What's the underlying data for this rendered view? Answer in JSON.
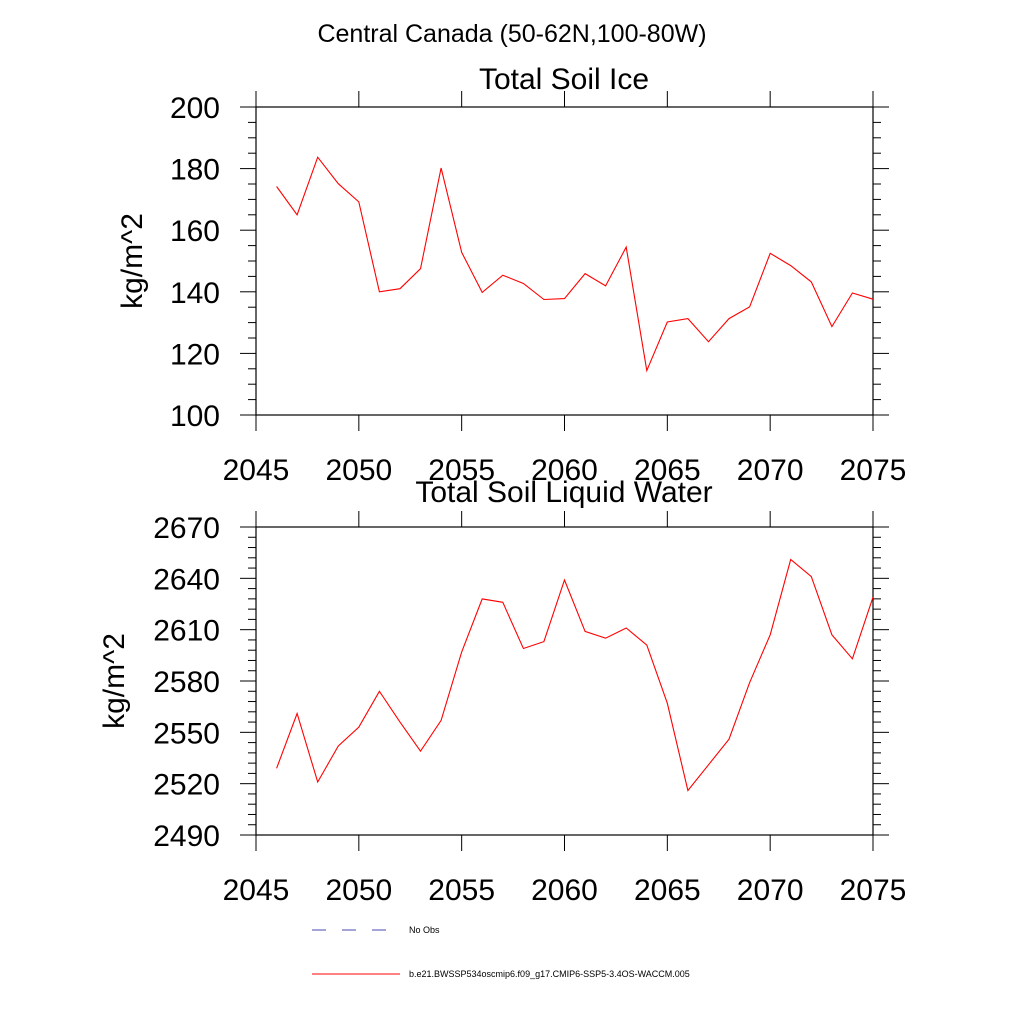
{
  "figure": {
    "suptitle": "Central Canada (50-62N,100-80W)"
  },
  "chart_data": [
    {
      "type": "line",
      "title": "Total Soil Ice",
      "xlabel": "",
      "ylabel": "kg/m^2",
      "xlim": [
        2045,
        2075
      ],
      "ylim": [
        100,
        200
      ],
      "x_ticks": [
        "2045",
        "2050",
        "2055",
        "2060",
        "2065",
        "2070",
        "2075"
      ],
      "y_ticks": [
        "100",
        "120",
        "140",
        "160",
        "180",
        "200"
      ],
      "x": [
        2046,
        2047,
        2048,
        2049,
        2050,
        2051,
        2052,
        2053,
        2054,
        2055,
        2056,
        2057,
        2058,
        2059,
        2060,
        2061,
        2062,
        2063,
        2064,
        2065,
        2066,
        2067,
        2068,
        2069,
        2070,
        2071,
        2072,
        2073,
        2074,
        2075
      ],
      "series": [
        {
          "name": "b.e21.BWSSP534oscmip6.f09_g17.CMIP6-SSP5-3.4OS-WACCM.005",
          "color": "#ff0000",
          "values": [
            174.2,
            165.0,
            183.7,
            175.1,
            169.2,
            140.0,
            141.0,
            147.5,
            180.2,
            152.8,
            139.8,
            145.4,
            142.7,
            137.5,
            137.8,
            145.9,
            141.9,
            154.5,
            114.4,
            130.2,
            131.3,
            123.8,
            131.3,
            135.1,
            152.5,
            148.5,
            143.2,
            128.7,
            139.6,
            137.6
          ]
        }
      ]
    },
    {
      "type": "line",
      "title": "Total Soil Liquid Water",
      "xlabel": "",
      "ylabel": "kg/m^2",
      "xlim": [
        2045,
        2075
      ],
      "ylim": [
        2490,
        2670
      ],
      "x_ticks": [
        "2045",
        "2050",
        "2055",
        "2060",
        "2065",
        "2070",
        "2075"
      ],
      "y_ticks": [
        "2490",
        "2520",
        "2550",
        "2580",
        "2610",
        "2640",
        "2670"
      ],
      "x": [
        2046,
        2047,
        2048,
        2049,
        2050,
        2051,
        2052,
        2053,
        2054,
        2055,
        2056,
        2057,
        2058,
        2059,
        2060,
        2061,
        2062,
        2063,
        2064,
        2065,
        2066,
        2067,
        2068,
        2069,
        2070,
        2071,
        2072,
        2073,
        2074,
        2075
      ],
      "series": [
        {
          "name": "b.e21.BWSSP534oscmip6.f09_g17.CMIP6-SSP5-3.4OS-WACCM.005",
          "color": "#ff0000",
          "values": [
            2529,
            2561,
            2521,
            2542,
            2553,
            2574,
            2556,
            2539,
            2557,
            2597,
            2628,
            2626,
            2599,
            2603,
            2639,
            2609,
            2605,
            2611,
            2601,
            2567,
            2516,
            2531,
            2546,
            2579,
            2607,
            2651,
            2641,
            2607,
            2593,
            2629
          ]
        }
      ]
    }
  ],
  "legend": [
    {
      "label": "No Obs",
      "style": "dashed",
      "color": "#4a4ab0"
    },
    {
      "label": "b.e21.BWSSP534oscmip6.f09_g17.CMIP6-SSP5-3.4OS-WACCM.005",
      "style": "solid",
      "color": "#ff0000"
    }
  ]
}
